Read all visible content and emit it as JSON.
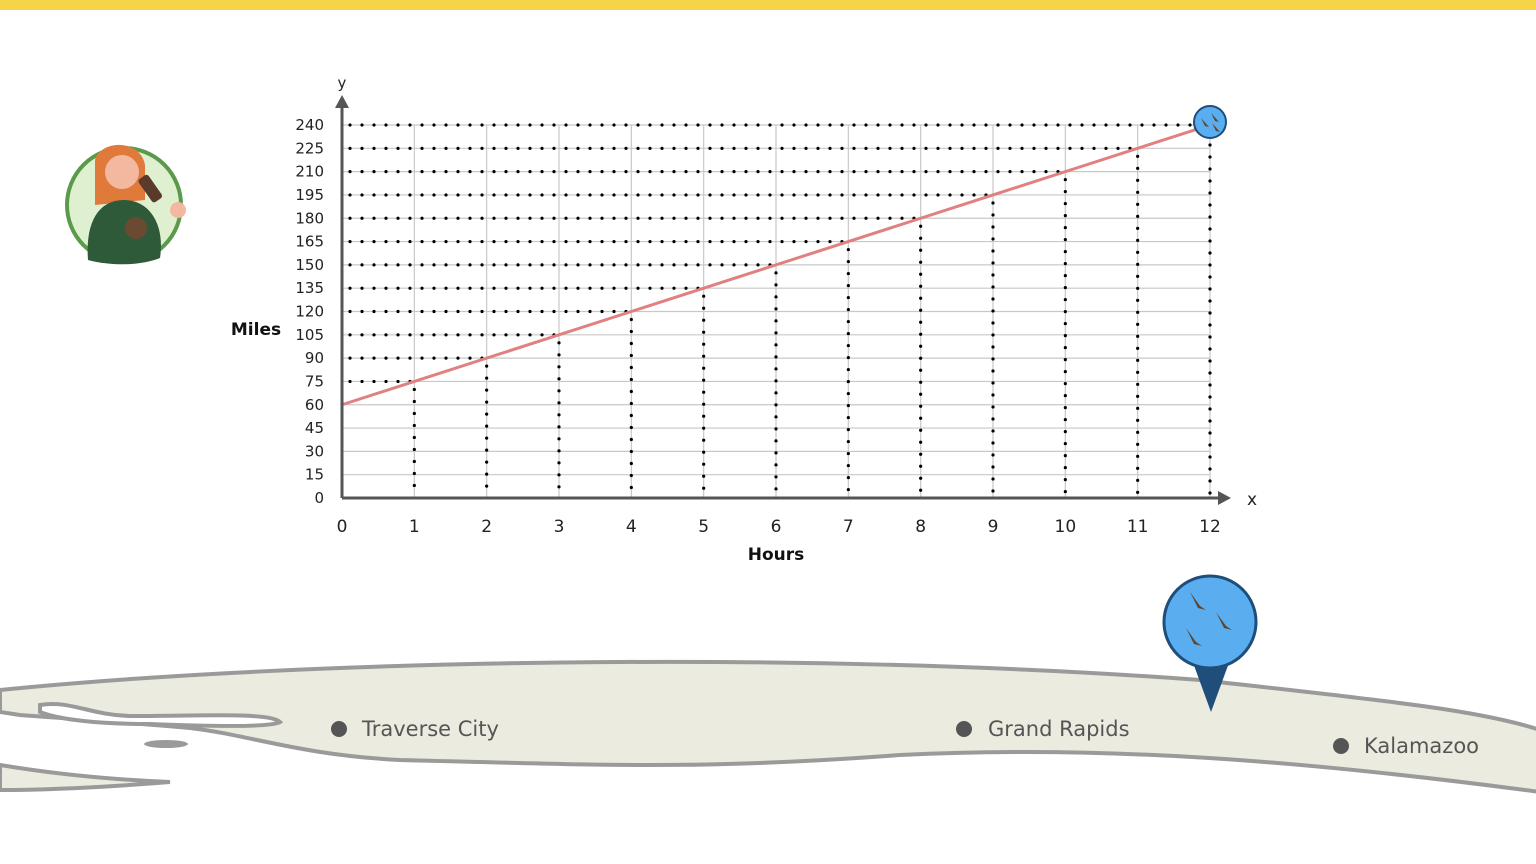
{
  "colors": {
    "top_bar": "#f5d547",
    "line": "#e08080",
    "grid": "#c8c8c8",
    "axis": "#555555",
    "map_fill": "#ecebdf",
    "map_stroke": "#9a9a9a",
    "pin": "#5aaef0",
    "pin_dark": "#1f4e7a"
  },
  "icons": {
    "avatar": "person-drinking-icon",
    "end_marker": "geese-icon",
    "map_pin": "geese-location-pin-icon"
  },
  "chart_data": {
    "type": "line",
    "title": "",
    "xlabel": "Hours",
    "ylabel": "Miles",
    "x_axis_letter": "x",
    "y_axis_letter": "y",
    "xlim": [
      0,
      12
    ],
    "ylim": [
      0,
      240
    ],
    "x_ticks": [
      0,
      1,
      2,
      3,
      4,
      5,
      6,
      7,
      8,
      9,
      10,
      11,
      12
    ],
    "y_ticks": [
      0,
      15,
      30,
      45,
      60,
      75,
      90,
      105,
      120,
      135,
      150,
      165,
      180,
      195,
      210,
      225,
      240
    ],
    "grid": true,
    "dotted_guides": true,
    "series": [
      {
        "x": [
          0,
          1,
          2,
          3,
          4,
          5,
          6,
          7,
          8,
          9,
          10,
          11,
          12
        ],
        "y": [
          60,
          75,
          90,
          105,
          120,
          135,
          150,
          165,
          180,
          195,
          210,
          225,
          240
        ]
      }
    ]
  },
  "map": {
    "cities": [
      "Traverse City",
      "Grand Rapids",
      "Kalamazoo"
    ]
  }
}
